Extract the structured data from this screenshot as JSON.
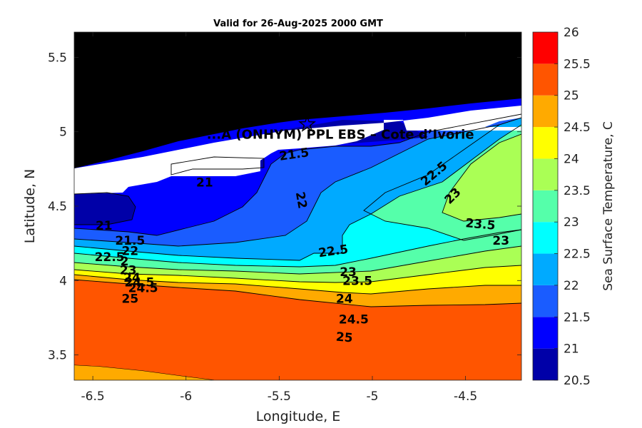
{
  "chart_data": {
    "type": "filled-contour",
    "title": "Valid for 26-Aug-2025 2000 GMT",
    "xlabel": "Longitude, E",
    "ylabel": "Latitude, N",
    "xlim": [
      -6.6,
      -4.2
    ],
    "ylim": [
      3.33,
      5.67
    ],
    "x_ticks": [
      -6.5,
      -6,
      -5.5,
      -5,
      -4.5
    ],
    "x_tick_labels": [
      "-6.5",
      "-6",
      "-5.5",
      "-5",
      "-4.5"
    ],
    "y_ticks": [
      3.5,
      4,
      4.5,
      5,
      5.5
    ],
    "y_tick_labels": [
      "3.5",
      "4",
      "4.5",
      "5",
      "5.5"
    ],
    "station": {
      "name": "...A (ONHYM) PPL EBS  – Cote d’Ivorie",
      "lon": -5.35,
      "lat": 5.05
    },
    "colorbar": {
      "label": "Sea Surface Temperature, C",
      "levels": [
        20.5,
        21,
        21.5,
        22,
        22.5,
        23,
        23.5,
        24,
        24.5,
        25,
        25.5,
        26
      ],
      "tick_labels": [
        "20.5",
        "21",
        "21.5",
        "22",
        "22.5",
        "23",
        "23.5",
        "24",
        "24.5",
        "25",
        "25.5",
        "26"
      ],
      "colors": [
        "#0000a8",
        "#0000ff",
        "#1a5cff",
        "#00aaff",
        "#00ffff",
        "#55ffaa",
        "#aaff55",
        "#ffff00",
        "#ffaa00",
        "#ff5500",
        "#ff0000"
      ]
    },
    "land_color": "#000000",
    "nodata_color": "#ffffff",
    "contour_labels": [
      {
        "text": "21.5",
        "lon": -5.42,
        "lat": 4.85,
        "rot": -8
      },
      {
        "text": "21",
        "lon": -5.9,
        "lat": 4.66,
        "rot": 0
      },
      {
        "text": "22",
        "lon": -5.38,
        "lat": 4.54,
        "rot": 80
      },
      {
        "text": "22.5",
        "lon": -4.67,
        "lat": 4.72,
        "rot": -40
      },
      {
        "text": "23",
        "lon": -4.57,
        "lat": 4.57,
        "rot": -45
      },
      {
        "text": "21",
        "lon": -6.44,
        "lat": 4.37,
        "rot": 0
      },
      {
        "text": "23.5",
        "lon": -4.42,
        "lat": 4.38,
        "rot": 5
      },
      {
        "text": "23",
        "lon": -4.31,
        "lat": 4.27,
        "rot": 0
      },
      {
        "text": "21.5",
        "lon": -6.3,
        "lat": 4.27,
        "rot": 0
      },
      {
        "text": "22",
        "lon": -6.3,
        "lat": 4.2,
        "rot": 0
      },
      {
        "text": "22.5",
        "lon": -5.21,
        "lat": 4.2,
        "rot": -8
      },
      {
        "text": "22.5",
        "lon": -6.41,
        "lat": 4.16,
        "rot": 0
      },
      {
        "text": "2",
        "lon": -6.33,
        "lat": 4.13,
        "rot": 0
      },
      {
        "text": "23",
        "lon": -6.31,
        "lat": 4.07,
        "rot": 0
      },
      {
        "text": "23",
        "lon": -5.13,
        "lat": 4.06,
        "rot": 0
      },
      {
        "text": "23.5",
        "lon": -5.08,
        "lat": 4.0,
        "rot": 0
      },
      {
        "text": "24",
        "lon": -6.29,
        "lat": 4.02,
        "rot": 0
      },
      {
        "text": "24.5",
        "lon": -6.25,
        "lat": 3.99,
        "rot": 0
      },
      {
        "text": "24.5",
        "lon": -6.23,
        "lat": 3.95,
        "rot": 0
      },
      {
        "text": "25",
        "lon": -6.3,
        "lat": 3.88,
        "rot": 0
      },
      {
        "text": "24",
        "lon": -5.15,
        "lat": 3.88,
        "rot": 0
      },
      {
        "text": "24.5",
        "lon": -5.1,
        "lat": 3.74,
        "rot": 0
      },
      {
        "text": "25",
        "lon": -5.15,
        "lat": 3.62,
        "rot": 5
      }
    ]
  }
}
